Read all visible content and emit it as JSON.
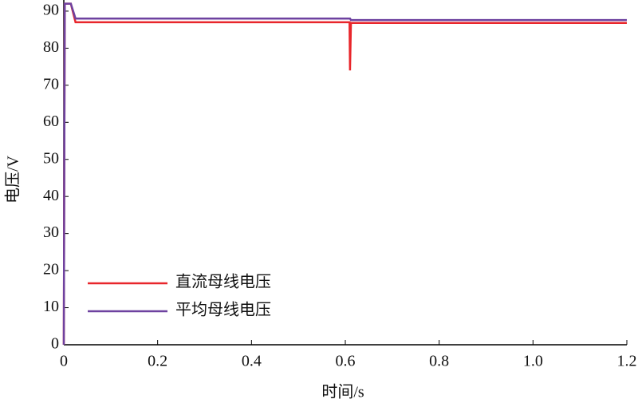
{
  "chart_data": {
    "type": "line",
    "x": [
      0,
      0.002,
      0.015,
      0.025,
      0.609,
      0.61,
      0.612,
      1.2
    ],
    "series": [
      {
        "name": "直流母线电压",
        "color": "#e8262b",
        "values": [
          0,
          92,
          92,
          87,
          87,
          74,
          86.8,
          86.8
        ]
      },
      {
        "name": "平均母线电压",
        "color": "#6e42a0",
        "values": [
          0,
          92,
          92,
          88,
          88,
          88,
          87.6,
          87.6
        ]
      }
    ],
    "xlabel": "时间/s",
    "ylabel": "电压/V",
    "xlim": [
      0,
      1.2
    ],
    "ylim": [
      0,
      93
    ],
    "xticks": [
      0,
      0.2,
      0.4,
      0.6,
      0.8,
      {
        "value": 1.0,
        "label": "1.0"
      },
      1.2
    ],
    "yticks": [
      0,
      10,
      20,
      30,
      40,
      50,
      60,
      70,
      80,
      90
    ],
    "legend": "lower left"
  }
}
